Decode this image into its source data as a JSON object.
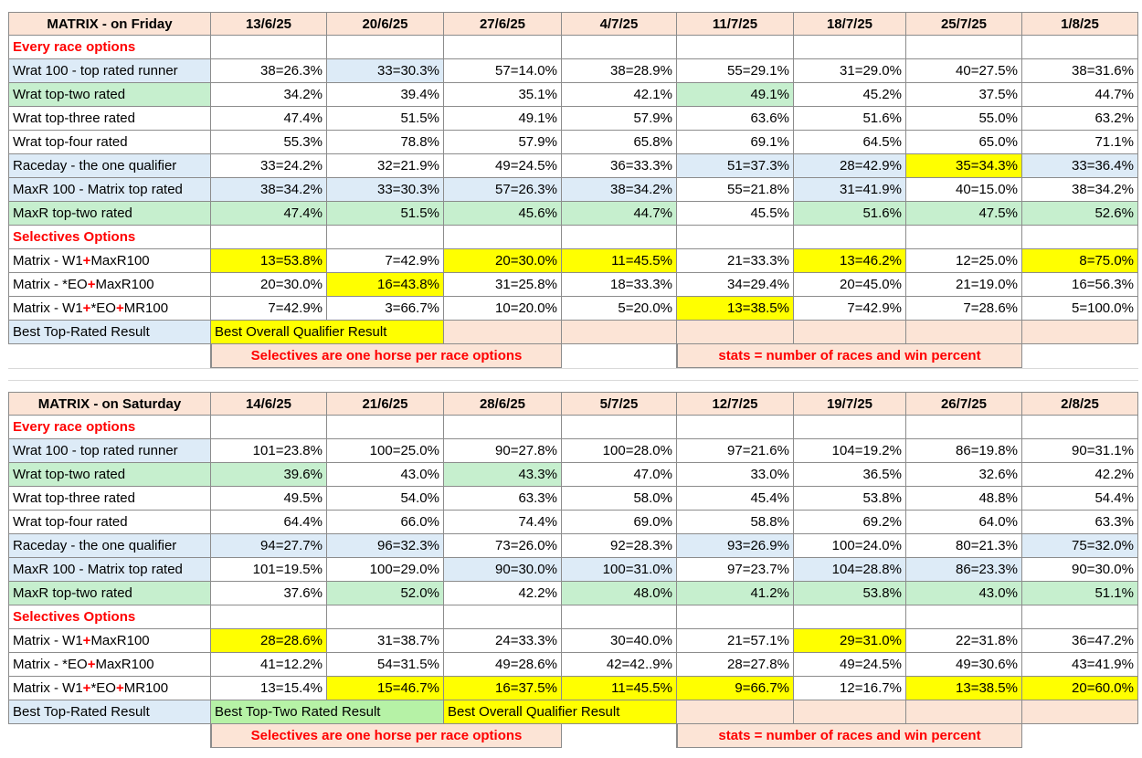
{
  "colors": {
    "header_bg": "#fce4d6",
    "blue": "#ddebf7",
    "green": "#c6efce",
    "bright_green": "#b6f2a6",
    "yellow": "#ffff00",
    "white": "#ffffff",
    "red_text": "#ff0000"
  },
  "tables": [
    {
      "title": "MATRIX - on Friday",
      "dates": [
        "13/6/25",
        "20/6/25",
        "27/6/25",
        "4/7/25",
        "11/7/25",
        "18/7/25",
        "25/7/25",
        "1/8/25"
      ],
      "sections": {
        "every": "Every race options",
        "selectives": "Selectives Options"
      },
      "rows": [
        {
          "label": "Wrat 100 - top rated runner",
          "label_bg": "blue",
          "values": [
            "38=26.3%",
            "33=30.3%",
            "57=14.0%",
            "38=28.9%",
            "55=29.1%",
            "31=29.0%",
            "40=27.5%",
            "38=31.6%"
          ],
          "bgs": [
            "white",
            "blue",
            "white",
            "white",
            "white",
            "white",
            "white",
            "white"
          ]
        },
        {
          "label": "Wrat top-two rated",
          "label_bg": "green",
          "values": [
            "34.2%",
            "39.4%",
            "35.1%",
            "42.1%",
            "49.1%",
            "45.2%",
            "37.5%",
            "44.7%"
          ],
          "bgs": [
            "white",
            "white",
            "white",
            "white",
            "green",
            "white",
            "white",
            "white"
          ]
        },
        {
          "label": "Wrat top-three rated",
          "label_bg": "white",
          "values": [
            "47.4%",
            "51.5%",
            "49.1%",
            "57.9%",
            "63.6%",
            "51.6%",
            "55.0%",
            "63.2%"
          ],
          "bgs": [
            "white",
            "white",
            "white",
            "white",
            "white",
            "white",
            "white",
            "white"
          ]
        },
        {
          "label": "Wrat top-four rated",
          "label_bg": "white",
          "values": [
            "55.3%",
            "78.8%",
            "57.9%",
            "65.8%",
            "69.1%",
            "64.5%",
            "65.0%",
            "71.1%"
          ],
          "bgs": [
            "white",
            "white",
            "white",
            "white",
            "white",
            "white",
            "white",
            "white"
          ]
        },
        {
          "label": "Raceday - the one qualifier",
          "label_bg": "blue",
          "values": [
            "33=24.2%",
            "32=21.9%",
            "49=24.5%",
            "36=33.3%",
            "51=37.3%",
            "28=42.9%",
            "35=34.3%",
            "33=36.4%"
          ],
          "bgs": [
            "white",
            "white",
            "white",
            "white",
            "blue",
            "blue",
            "yellow",
            "blue"
          ]
        },
        {
          "label": "MaxR 100 - Matrix top rated",
          "label_bg": "blue",
          "values": [
            "38=34.2%",
            "33=30.3%",
            "57=26.3%",
            "38=34.2%",
            "55=21.8%",
            "31=41.9%",
            "40=15.0%",
            "38=34.2%"
          ],
          "bgs": [
            "blue",
            "blue",
            "blue",
            "blue",
            "white",
            "blue",
            "white",
            "white"
          ]
        },
        {
          "label": "MaxR top-two rated",
          "label_bg": "green",
          "values": [
            "47.4%",
            "51.5%",
            "45.6%",
            "44.7%",
            "45.5%",
            "51.6%",
            "47.5%",
            "52.6%"
          ],
          "bgs": [
            "green",
            "green",
            "green",
            "green",
            "white",
            "green",
            "green",
            "green"
          ]
        }
      ],
      "sel_rows": [
        {
          "pre": "Matrix - W1",
          "mid": "",
          "post": "MaxR100",
          "values": [
            "13=53.8%",
            "7=42.9%",
            "20=30.0%",
            "11=45.5%",
            "21=33.3%",
            "13=46.2%",
            "12=25.0%",
            "8=75.0%"
          ],
          "bgs": [
            "yellow",
            "white",
            "yellow",
            "yellow",
            "white",
            "yellow",
            "white",
            "yellow"
          ]
        },
        {
          "pre": "Matrix - *EO",
          "mid": "",
          "post": "MaxR100",
          "values": [
            "20=30.0%",
            "16=43.8%",
            "31=25.8%",
            "18=33.3%",
            "34=29.4%",
            "20=45.0%",
            "21=19.0%",
            "16=56.3%"
          ],
          "bgs": [
            "white",
            "yellow",
            "white",
            "white",
            "white",
            "white",
            "white",
            "white"
          ]
        },
        {
          "pre": "Matrix - W1",
          "mid": "*EO",
          "post": "MR100",
          "values": [
            "7=42.9%",
            "3=66.7%",
            "10=20.0%",
            "5=20.0%",
            "13=38.5%",
            "7=42.9%",
            "7=28.6%",
            "5=100.0%"
          ],
          "bgs": [
            "white",
            "white",
            "white",
            "white",
            "yellow",
            "white",
            "white",
            "white"
          ]
        }
      ],
      "legend": {
        "best_top_rated": "Best Top-Rated Result",
        "best_top_two": "",
        "best_overall": "Best Overall Qualifier Result"
      },
      "notes": {
        "selectives": "Selectives are one horse per race options",
        "stats": "stats = number of races and win percent"
      }
    },
    {
      "title": "MATRIX - on Saturday",
      "dates": [
        "14/6/25",
        "21/6/25",
        "28/6/25",
        "5/7/25",
        "12/7/25",
        "19/7/25",
        "26/7/25",
        "2/8/25"
      ],
      "sections": {
        "every": "Every race options",
        "selectives": "Selectives Options"
      },
      "rows": [
        {
          "label": "Wrat 100 - top rated runner",
          "label_bg": "blue",
          "values": [
            "101=23.8%",
            "100=25.0%",
            "90=27.8%",
            "100=28.0%",
            "97=21.6%",
            "104=19.2%",
            "86=19.8%",
            "90=31.1%"
          ],
          "bgs": [
            "white",
            "white",
            "white",
            "white",
            "white",
            "white",
            "white",
            "white"
          ]
        },
        {
          "label": "Wrat top-two rated",
          "label_bg": "green",
          "values": [
            "39.6%",
            "43.0%",
            "43.3%",
            "47.0%",
            "33.0%",
            "36.5%",
            "32.6%",
            "42.2%"
          ],
          "bgs": [
            "green",
            "white",
            "green",
            "white",
            "white",
            "white",
            "white",
            "white"
          ]
        },
        {
          "label": "Wrat top-three rated",
          "label_bg": "white",
          "values": [
            "49.5%",
            "54.0%",
            "63.3%",
            "58.0%",
            "45.4%",
            "53.8%",
            "48.8%",
            "54.4%"
          ],
          "bgs": [
            "white",
            "white",
            "white",
            "white",
            "white",
            "white",
            "white",
            "white"
          ]
        },
        {
          "label": "Wrat top-four rated",
          "label_bg": "white",
          "values": [
            "64.4%",
            "66.0%",
            "74.4%",
            "69.0%",
            "58.8%",
            "69.2%",
            "64.0%",
            "63.3%"
          ],
          "bgs": [
            "white",
            "white",
            "white",
            "white",
            "white",
            "white",
            "white",
            "white"
          ]
        },
        {
          "label": "Raceday - the one qualifier",
          "label_bg": "blue",
          "values": [
            "94=27.7%",
            "96=32.3%",
            "73=26.0%",
            "92=28.3%",
            "93=26.9%",
            "100=24.0%",
            "80=21.3%",
            "75=32.0%"
          ],
          "bgs": [
            "blue",
            "blue",
            "white",
            "white",
            "blue",
            "white",
            "white",
            "blue"
          ]
        },
        {
          "label": "MaxR 100 - Matrix top rated",
          "label_bg": "blue",
          "values": [
            "101=19.5%",
            "100=29.0%",
            "90=30.0%",
            "100=31.0%",
            "97=23.7%",
            "104=28.8%",
            "86=23.3%",
            "90=30.0%"
          ],
          "bgs": [
            "white",
            "white",
            "blue",
            "blue",
            "white",
            "blue",
            "blue",
            "white"
          ]
        },
        {
          "label": "MaxR top-two rated",
          "label_bg": "green",
          "values": [
            "37.6%",
            "52.0%",
            "42.2%",
            "48.0%",
            "41.2%",
            "53.8%",
            "43.0%",
            "51.1%"
          ],
          "bgs": [
            "white",
            "green",
            "white",
            "green",
            "green",
            "green",
            "green",
            "green"
          ]
        }
      ],
      "sel_rows": [
        {
          "pre": "Matrix - W1",
          "mid": "",
          "post": "MaxR100",
          "values": [
            "28=28.6%",
            "31=38.7%",
            "24=33.3%",
            "30=40.0%",
            "21=57.1%",
            "29=31.0%",
            "22=31.8%",
            "36=47.2%"
          ],
          "bgs": [
            "yellow",
            "white",
            "white",
            "white",
            "white",
            "yellow",
            "white",
            "white"
          ]
        },
        {
          "pre": "Matrix - *EO",
          "mid": "",
          "post": "MaxR100",
          "values": [
            "41=12.2%",
            "54=31.5%",
            "49=28.6%",
            "42=42..9%",
            "28=27.8%",
            "49=24.5%",
            "49=30.6%",
            "43=41.9%"
          ],
          "bgs": [
            "white",
            "white",
            "white",
            "white",
            "white",
            "white",
            "white",
            "white"
          ]
        },
        {
          "pre": "Matrix - W1",
          "mid": "*EO",
          "post": "MR100",
          "values": [
            "13=15.4%",
            "15=46.7%",
            "16=37.5%",
            "11=45.5%",
            "9=66.7%",
            "12=16.7%",
            "13=38.5%",
            "20=60.0%"
          ],
          "bgs": [
            "white",
            "yellow",
            "yellow",
            "yellow",
            "yellow",
            "white",
            "yellow",
            "yellow"
          ]
        }
      ],
      "legend": {
        "best_top_rated": "Best Top-Rated Result",
        "best_top_two": "Best Top-Two Rated Result",
        "best_overall": "Best Overall Qualifier Result"
      },
      "notes": {
        "selectives": "Selectives are one horse per race options",
        "stats": "stats = number of races and win percent"
      }
    }
  ]
}
